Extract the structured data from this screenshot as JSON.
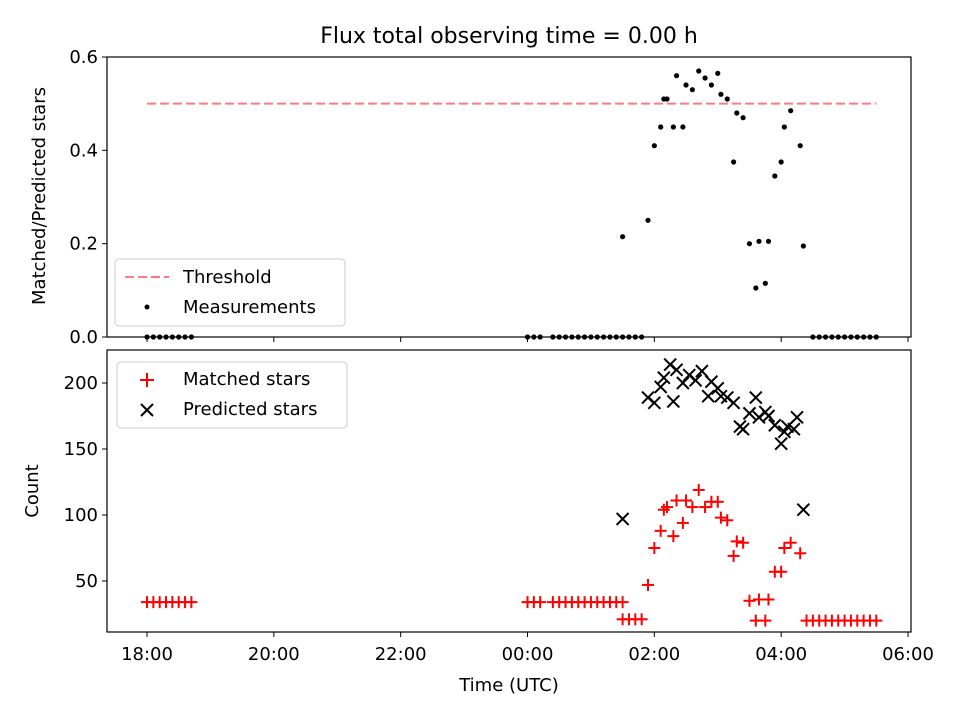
{
  "chart_data": [
    {
      "type": "scatter",
      "title": "Flux total observing time = 0.00 h",
      "xlabel": "",
      "ylabel": "Matched/Predicted stars",
      "ylim": [
        0,
        0.6
      ],
      "yticks": [
        "0.0",
        "0.2",
        "0.4",
        "0.6"
      ],
      "x_ticks": [
        "18:00",
        "20:00",
        "22:00",
        "00:00",
        "02:00",
        "04:00",
        "06:00"
      ],
      "legend": {
        "placement": "lower-left",
        "entries": [
          "Threshold",
          "Measurements"
        ]
      },
      "threshold": {
        "name": "Threshold",
        "value": 0.5,
        "x_start": 0,
        "x_end": 11.5,
        "color": "#ff7b7b"
      },
      "series": [
        {
          "name": "Measurements",
          "color": "#000000",
          "marker": "dot",
          "points": [
            [
              0,
              0
            ],
            [
              0.1,
              0
            ],
            [
              0.2,
              0
            ],
            [
              0.3,
              0
            ],
            [
              0.4,
              0
            ],
            [
              0.5,
              0
            ],
            [
              0.6,
              0
            ],
            [
              0.7,
              0
            ],
            [
              6.0,
              0
            ],
            [
              6.1,
              0
            ],
            [
              6.2,
              0
            ],
            [
              6.4,
              0
            ],
            [
              6.5,
              0
            ],
            [
              6.6,
              0
            ],
            [
              6.7,
              0
            ],
            [
              6.8,
              0
            ],
            [
              6.9,
              0
            ],
            [
              7.0,
              0
            ],
            [
              7.1,
              0
            ],
            [
              7.2,
              0
            ],
            [
              7.3,
              0
            ],
            [
              7.4,
              0
            ],
            [
              7.5,
              0
            ],
            [
              7.5,
              0.215
            ],
            [
              7.6,
              0
            ],
            [
              7.7,
              0
            ],
            [
              7.8,
              0
            ],
            [
              7.9,
              0.25
            ],
            [
              8.0,
              0.41
            ],
            [
              8.1,
              0.45
            ],
            [
              8.15,
              0.51
            ],
            [
              8.2,
              0.51
            ],
            [
              8.3,
              0.45
            ],
            [
              8.35,
              0.56
            ],
            [
              8.45,
              0.45
            ],
            [
              8.5,
              0.54
            ],
            [
              8.6,
              0.53
            ],
            [
              8.7,
              0.57
            ],
            [
              8.8,
              0.555
            ],
            [
              8.9,
              0.54
            ],
            [
              9.0,
              0.565
            ],
            [
              9.05,
              0.52
            ],
            [
              9.15,
              0.51
            ],
            [
              9.25,
              0.375
            ],
            [
              9.3,
              0.48
            ],
            [
              9.4,
              0.47
            ],
            [
              9.5,
              0.2
            ],
            [
              9.6,
              0.105
            ],
            [
              9.65,
              0.205
            ],
            [
              9.75,
              0.115
            ],
            [
              9.8,
              0.205
            ],
            [
              9.9,
              0.345
            ],
            [
              10.0,
              0.375
            ],
            [
              10.05,
              0.45
            ],
            [
              10.15,
              0.485
            ],
            [
              10.3,
              0.41
            ],
            [
              10.35,
              0.195
            ],
            [
              10.5,
              0
            ],
            [
              10.6,
              0
            ],
            [
              10.7,
              0
            ],
            [
              10.8,
              0
            ],
            [
              10.9,
              0
            ],
            [
              11.0,
              0
            ],
            [
              11.1,
              0
            ],
            [
              11.2,
              0
            ],
            [
              11.3,
              0
            ],
            [
              11.4,
              0
            ],
            [
              11.5,
              0
            ]
          ]
        }
      ]
    },
    {
      "type": "scatter",
      "title": "",
      "xlabel": "Time (UTC)",
      "ylabel": "Count",
      "ylim": [
        10,
        225
      ],
      "yticks": [
        "50",
        "100",
        "150",
        "200"
      ],
      "x_ticks": [
        "18:00",
        "20:00",
        "22:00",
        "00:00",
        "02:00",
        "04:00",
        "06:00"
      ],
      "legend": {
        "placement": "upper-left",
        "entries": [
          "Matched stars",
          "Predicted stars"
        ]
      },
      "series": [
        {
          "name": "Matched stars",
          "color": "#ff0000",
          "marker": "plus",
          "points": [
            [
              0,
              34
            ],
            [
              0.1,
              34
            ],
            [
              0.2,
              34
            ],
            [
              0.3,
              34
            ],
            [
              0.4,
              34
            ],
            [
              0.5,
              34
            ],
            [
              0.6,
              34
            ],
            [
              0.7,
              34
            ],
            [
              6.0,
              34
            ],
            [
              6.1,
              34
            ],
            [
              6.2,
              34
            ],
            [
              6.4,
              34
            ],
            [
              6.5,
              34
            ],
            [
              6.6,
              34
            ],
            [
              6.7,
              34
            ],
            [
              6.8,
              34
            ],
            [
              6.9,
              34
            ],
            [
              7.0,
              34
            ],
            [
              7.1,
              34
            ],
            [
              7.2,
              34
            ],
            [
              7.3,
              34
            ],
            [
              7.4,
              34
            ],
            [
              7.5,
              34
            ],
            [
              7.5,
              21
            ],
            [
              7.6,
              21
            ],
            [
              7.7,
              21
            ],
            [
              7.8,
              21
            ],
            [
              7.9,
              47
            ],
            [
              8.0,
              75
            ],
            [
              8.1,
              88
            ],
            [
              8.15,
              104
            ],
            [
              8.2,
              106
            ],
            [
              8.3,
              84
            ],
            [
              8.35,
              111
            ],
            [
              8.45,
              94
            ],
            [
              8.5,
              111
            ],
            [
              8.6,
              106
            ],
            [
              8.7,
              119
            ],
            [
              8.8,
              106
            ],
            [
              8.9,
              110
            ],
            [
              9.0,
              110
            ],
            [
              9.05,
              98
            ],
            [
              9.15,
              96
            ],
            [
              9.25,
              69
            ],
            [
              9.3,
              80
            ],
            [
              9.4,
              79
            ],
            [
              9.5,
              35
            ],
            [
              9.6,
              20
            ],
            [
              9.65,
              36
            ],
            [
              9.75,
              20
            ],
            [
              9.8,
              36
            ],
            [
              9.9,
              57
            ],
            [
              10.0,
              57
            ],
            [
              10.05,
              75
            ],
            [
              10.15,
              79
            ],
            [
              10.3,
              71
            ],
            [
              10.4,
              20
            ],
            [
              10.5,
              20
            ],
            [
              10.6,
              20
            ],
            [
              10.7,
              20
            ],
            [
              10.8,
              20
            ],
            [
              10.9,
              20
            ],
            [
              11.0,
              20
            ],
            [
              11.1,
              20
            ],
            [
              11.2,
              20
            ],
            [
              11.3,
              20
            ],
            [
              11.4,
              20
            ],
            [
              11.5,
              20
            ]
          ]
        },
        {
          "name": "Predicted stars",
          "color": "#000000",
          "marker": "x",
          "points": [
            [
              7.5,
              97
            ],
            [
              7.9,
              189
            ],
            [
              8.0,
              185
            ],
            [
              8.1,
              197
            ],
            [
              8.15,
              204
            ],
            [
              8.25,
              214
            ],
            [
              8.35,
              210
            ],
            [
              8.3,
              186
            ],
            [
              8.45,
              200
            ],
            [
              8.55,
              206
            ],
            [
              8.65,
              202
            ],
            [
              8.75,
              209
            ],
            [
              8.85,
              190
            ],
            [
              8.9,
              201
            ],
            [
              9.0,
              196
            ],
            [
              9.05,
              190
            ],
            [
              9.15,
              189
            ],
            [
              9.25,
              185
            ],
            [
              9.35,
              167
            ],
            [
              9.4,
              165
            ],
            [
              9.5,
              177
            ],
            [
              9.6,
              189
            ],
            [
              9.65,
              174
            ],
            [
              9.75,
              178
            ],
            [
              9.8,
              175
            ],
            [
              9.9,
              168
            ],
            [
              10.0,
              154
            ],
            [
              10.05,
              163
            ],
            [
              10.1,
              167
            ],
            [
              10.2,
              165
            ],
            [
              10.25,
              174
            ],
            [
              10.35,
              104
            ]
          ]
        }
      ]
    }
  ]
}
